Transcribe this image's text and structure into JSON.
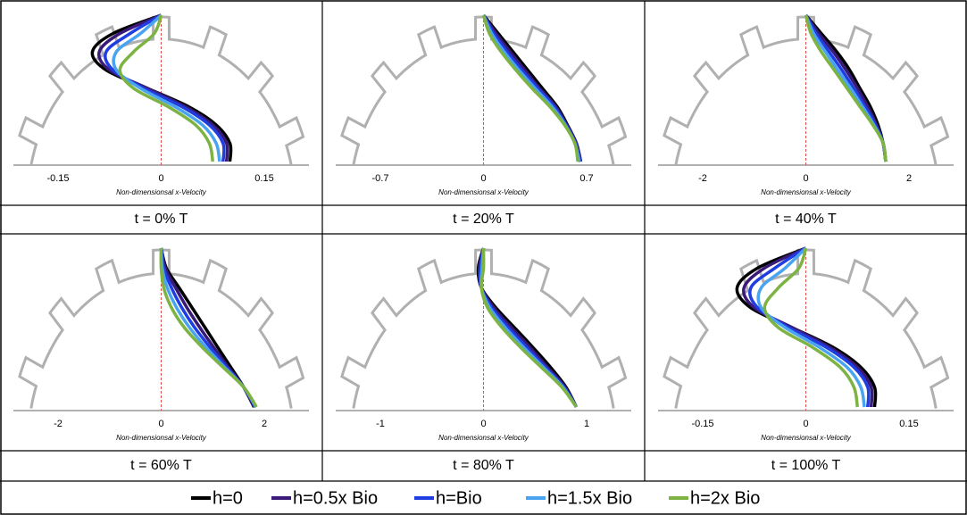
{
  "chart_data": [
    {
      "type": "line",
      "title": "t = 0% T",
      "xlabel": "Non-dimensionsal x-Velocity",
      "xlim": [
        -0.15,
        0.15
      ],
      "xticks": [
        -0.15,
        0,
        0.15
      ],
      "series": [
        {
          "name": "h=0",
          "color": "#000000",
          "values": [
            0,
            -0.07,
            -0.1,
            -0.08,
            -0.02,
            0.04,
            0.08,
            0.1,
            0.1
          ]
        },
        {
          "name": "h=0.5x Bio",
          "color": "#3a1a78",
          "values": [
            0,
            -0.06,
            -0.09,
            -0.075,
            -0.02,
            0.035,
            0.075,
            0.095,
            0.095
          ]
        },
        {
          "name": "h=Bio",
          "color": "#1f3de0",
          "values": [
            0,
            -0.045,
            -0.08,
            -0.07,
            -0.025,
            0.03,
            0.07,
            0.09,
            0.09
          ]
        },
        {
          "name": "h=1.5x Bio",
          "color": "#4aa3f0",
          "values": [
            0,
            -0.03,
            -0.065,
            -0.065,
            -0.03,
            0.02,
            0.06,
            0.08,
            0.085
          ]
        },
        {
          "name": "h=2x Bio",
          "color": "#7cb342",
          "values": [
            0,
            -0.01,
            -0.04,
            -0.06,
            -0.04,
            0.01,
            0.05,
            0.07,
            0.075
          ]
        }
      ]
    },
    {
      "type": "line",
      "title": "t = 20% T",
      "xlabel": "Non-dimensionsal x-Velocity",
      "xlim": [
        -0.7,
        0.7
      ],
      "xticks": [
        -0.7,
        0,
        0.7
      ],
      "series": [
        {
          "name": "h=0",
          "color": "#000000",
          "values": [
            0,
            0.1,
            0.2,
            0.3,
            0.4,
            0.5,
            0.57,
            0.63,
            0.66
          ]
        },
        {
          "name": "h=0.5x Bio",
          "color": "#3a1a78",
          "values": [
            0,
            0.085,
            0.18,
            0.28,
            0.38,
            0.49,
            0.565,
            0.63,
            0.66
          ]
        },
        {
          "name": "h=Bio",
          "color": "#1f3de0",
          "values": [
            0,
            0.07,
            0.16,
            0.26,
            0.37,
            0.48,
            0.56,
            0.625,
            0.655
          ]
        },
        {
          "name": "h=1.5x Bio",
          "color": "#4aa3f0",
          "values": [
            0,
            0.055,
            0.14,
            0.24,
            0.35,
            0.465,
            0.555,
            0.62,
            0.65
          ]
        },
        {
          "name": "h=2x Bio",
          "color": "#7cb342",
          "values": [
            0,
            0.04,
            0.12,
            0.22,
            0.33,
            0.45,
            0.55,
            0.62,
            0.64
          ]
        }
      ]
    },
    {
      "type": "line",
      "title": "t = 40% T",
      "xlabel": "Non-dimensionsal x-Velocity",
      "xlim": [
        -2,
        2
      ],
      "xticks": [
        -2,
        0,
        2
      ],
      "series": [
        {
          "name": "h=0",
          "color": "#000000",
          "values": [
            0,
            0.3,
            0.6,
            0.85,
            1.05,
            1.25,
            1.4,
            1.5,
            1.55
          ]
        },
        {
          "name": "h=0.5x Bio",
          "color": "#3a1a78",
          "values": [
            0,
            0.25,
            0.53,
            0.78,
            1.0,
            1.2,
            1.37,
            1.5,
            1.55
          ]
        },
        {
          "name": "h=Bio",
          "color": "#1f3de0",
          "values": [
            0,
            0.2,
            0.45,
            0.7,
            0.93,
            1.15,
            1.35,
            1.5,
            1.55
          ]
        },
        {
          "name": "h=1.5x Bio",
          "color": "#4aa3f0",
          "values": [
            0,
            0.15,
            0.38,
            0.62,
            0.87,
            1.1,
            1.32,
            1.5,
            1.55
          ]
        },
        {
          "name": "h=2x Bio",
          "color": "#7cb342",
          "values": [
            0,
            0.1,
            0.3,
            0.55,
            0.8,
            1.05,
            1.3,
            1.5,
            1.55
          ]
        }
      ]
    },
    {
      "type": "line",
      "title": "t = 60% T",
      "xlabel": "Non-dimensionsal x-Velocity",
      "xlim": [
        -2,
        2
      ],
      "xticks": [
        -2,
        0,
        2
      ],
      "series": [
        {
          "name": "h=0",
          "color": "#000000",
          "values": [
            0,
            0.1,
            0.35,
            0.6,
            0.85,
            1.1,
            1.35,
            1.6,
            1.8
          ]
        },
        {
          "name": "h=0.5x Bio",
          "color": "#3a1a78",
          "values": [
            0,
            0.08,
            0.28,
            0.5,
            0.75,
            1.02,
            1.3,
            1.6,
            1.81
          ]
        },
        {
          "name": "h=Bio",
          "color": "#1f3de0",
          "values": [
            0,
            0.05,
            0.2,
            0.4,
            0.65,
            0.95,
            1.27,
            1.6,
            1.82
          ]
        },
        {
          "name": "h=1.5x Bio",
          "color": "#4aa3f0",
          "values": [
            0,
            0.02,
            0.12,
            0.3,
            0.55,
            0.87,
            1.23,
            1.6,
            1.84
          ]
        },
        {
          "name": "h=2x Bio",
          "color": "#7cb342",
          "values": [
            0,
            0,
            0.05,
            0.2,
            0.45,
            0.8,
            1.2,
            1.6,
            1.85
          ]
        }
      ]
    },
    {
      "type": "line",
      "title": "t = 80% T",
      "xlabel": "Non-dimensionsal x-Velocity",
      "xlim": [
        -1,
        1
      ],
      "xticks": [
        -1,
        0,
        1
      ],
      "series": [
        {
          "name": "h=0",
          "color": "#000000",
          "values": [
            0,
            -0.05,
            -0.02,
            0.12,
            0.3,
            0.48,
            0.65,
            0.8,
            0.9
          ]
        },
        {
          "name": "h=0.5x Bio",
          "color": "#3a1a78",
          "values": [
            0,
            -0.04,
            -0.02,
            0.1,
            0.27,
            0.45,
            0.62,
            0.79,
            0.9
          ]
        },
        {
          "name": "h=Bio",
          "color": "#1f3de0",
          "values": [
            0,
            -0.03,
            -0.02,
            0.08,
            0.24,
            0.42,
            0.6,
            0.78,
            0.9
          ]
        },
        {
          "name": "h=1.5x Bio",
          "color": "#4aa3f0",
          "values": [
            0,
            -0.015,
            -0.02,
            0.06,
            0.21,
            0.39,
            0.58,
            0.77,
            0.9
          ]
        },
        {
          "name": "h=2x Bio",
          "color": "#7cb342",
          "values": [
            0,
            0,
            -0.02,
            0.04,
            0.18,
            0.36,
            0.56,
            0.76,
            0.9
          ]
        }
      ]
    },
    {
      "type": "line",
      "title": "t = 100% T",
      "xlabel": "Non-dimensionsal x-Velocity",
      "xlim": [
        -0.15,
        0.15
      ],
      "xticks": [
        -0.15,
        0,
        0.15
      ],
      "series": [
        {
          "name": "h=0",
          "color": "#000000",
          "values": [
            0,
            -0.07,
            -0.1,
            -0.08,
            -0.02,
            0.04,
            0.08,
            0.1,
            0.1
          ]
        },
        {
          "name": "h=0.5x Bio",
          "color": "#3a1a78",
          "values": [
            0,
            -0.06,
            -0.09,
            -0.075,
            -0.02,
            0.035,
            0.075,
            0.095,
            0.095
          ]
        },
        {
          "name": "h=Bio",
          "color": "#1f3de0",
          "values": [
            0,
            -0.045,
            -0.08,
            -0.07,
            -0.025,
            0.03,
            0.07,
            0.09,
            0.09
          ]
        },
        {
          "name": "h=1.5x Bio",
          "color": "#4aa3f0",
          "values": [
            0,
            -0.03,
            -0.065,
            -0.065,
            -0.03,
            0.02,
            0.06,
            0.08,
            0.085
          ]
        },
        {
          "name": "h=2x Bio",
          "color": "#7cb342",
          "values": [
            0,
            -0.01,
            -0.04,
            -0.06,
            -0.04,
            0.01,
            0.05,
            0.07,
            0.075
          ]
        }
      ]
    }
  ]
}
